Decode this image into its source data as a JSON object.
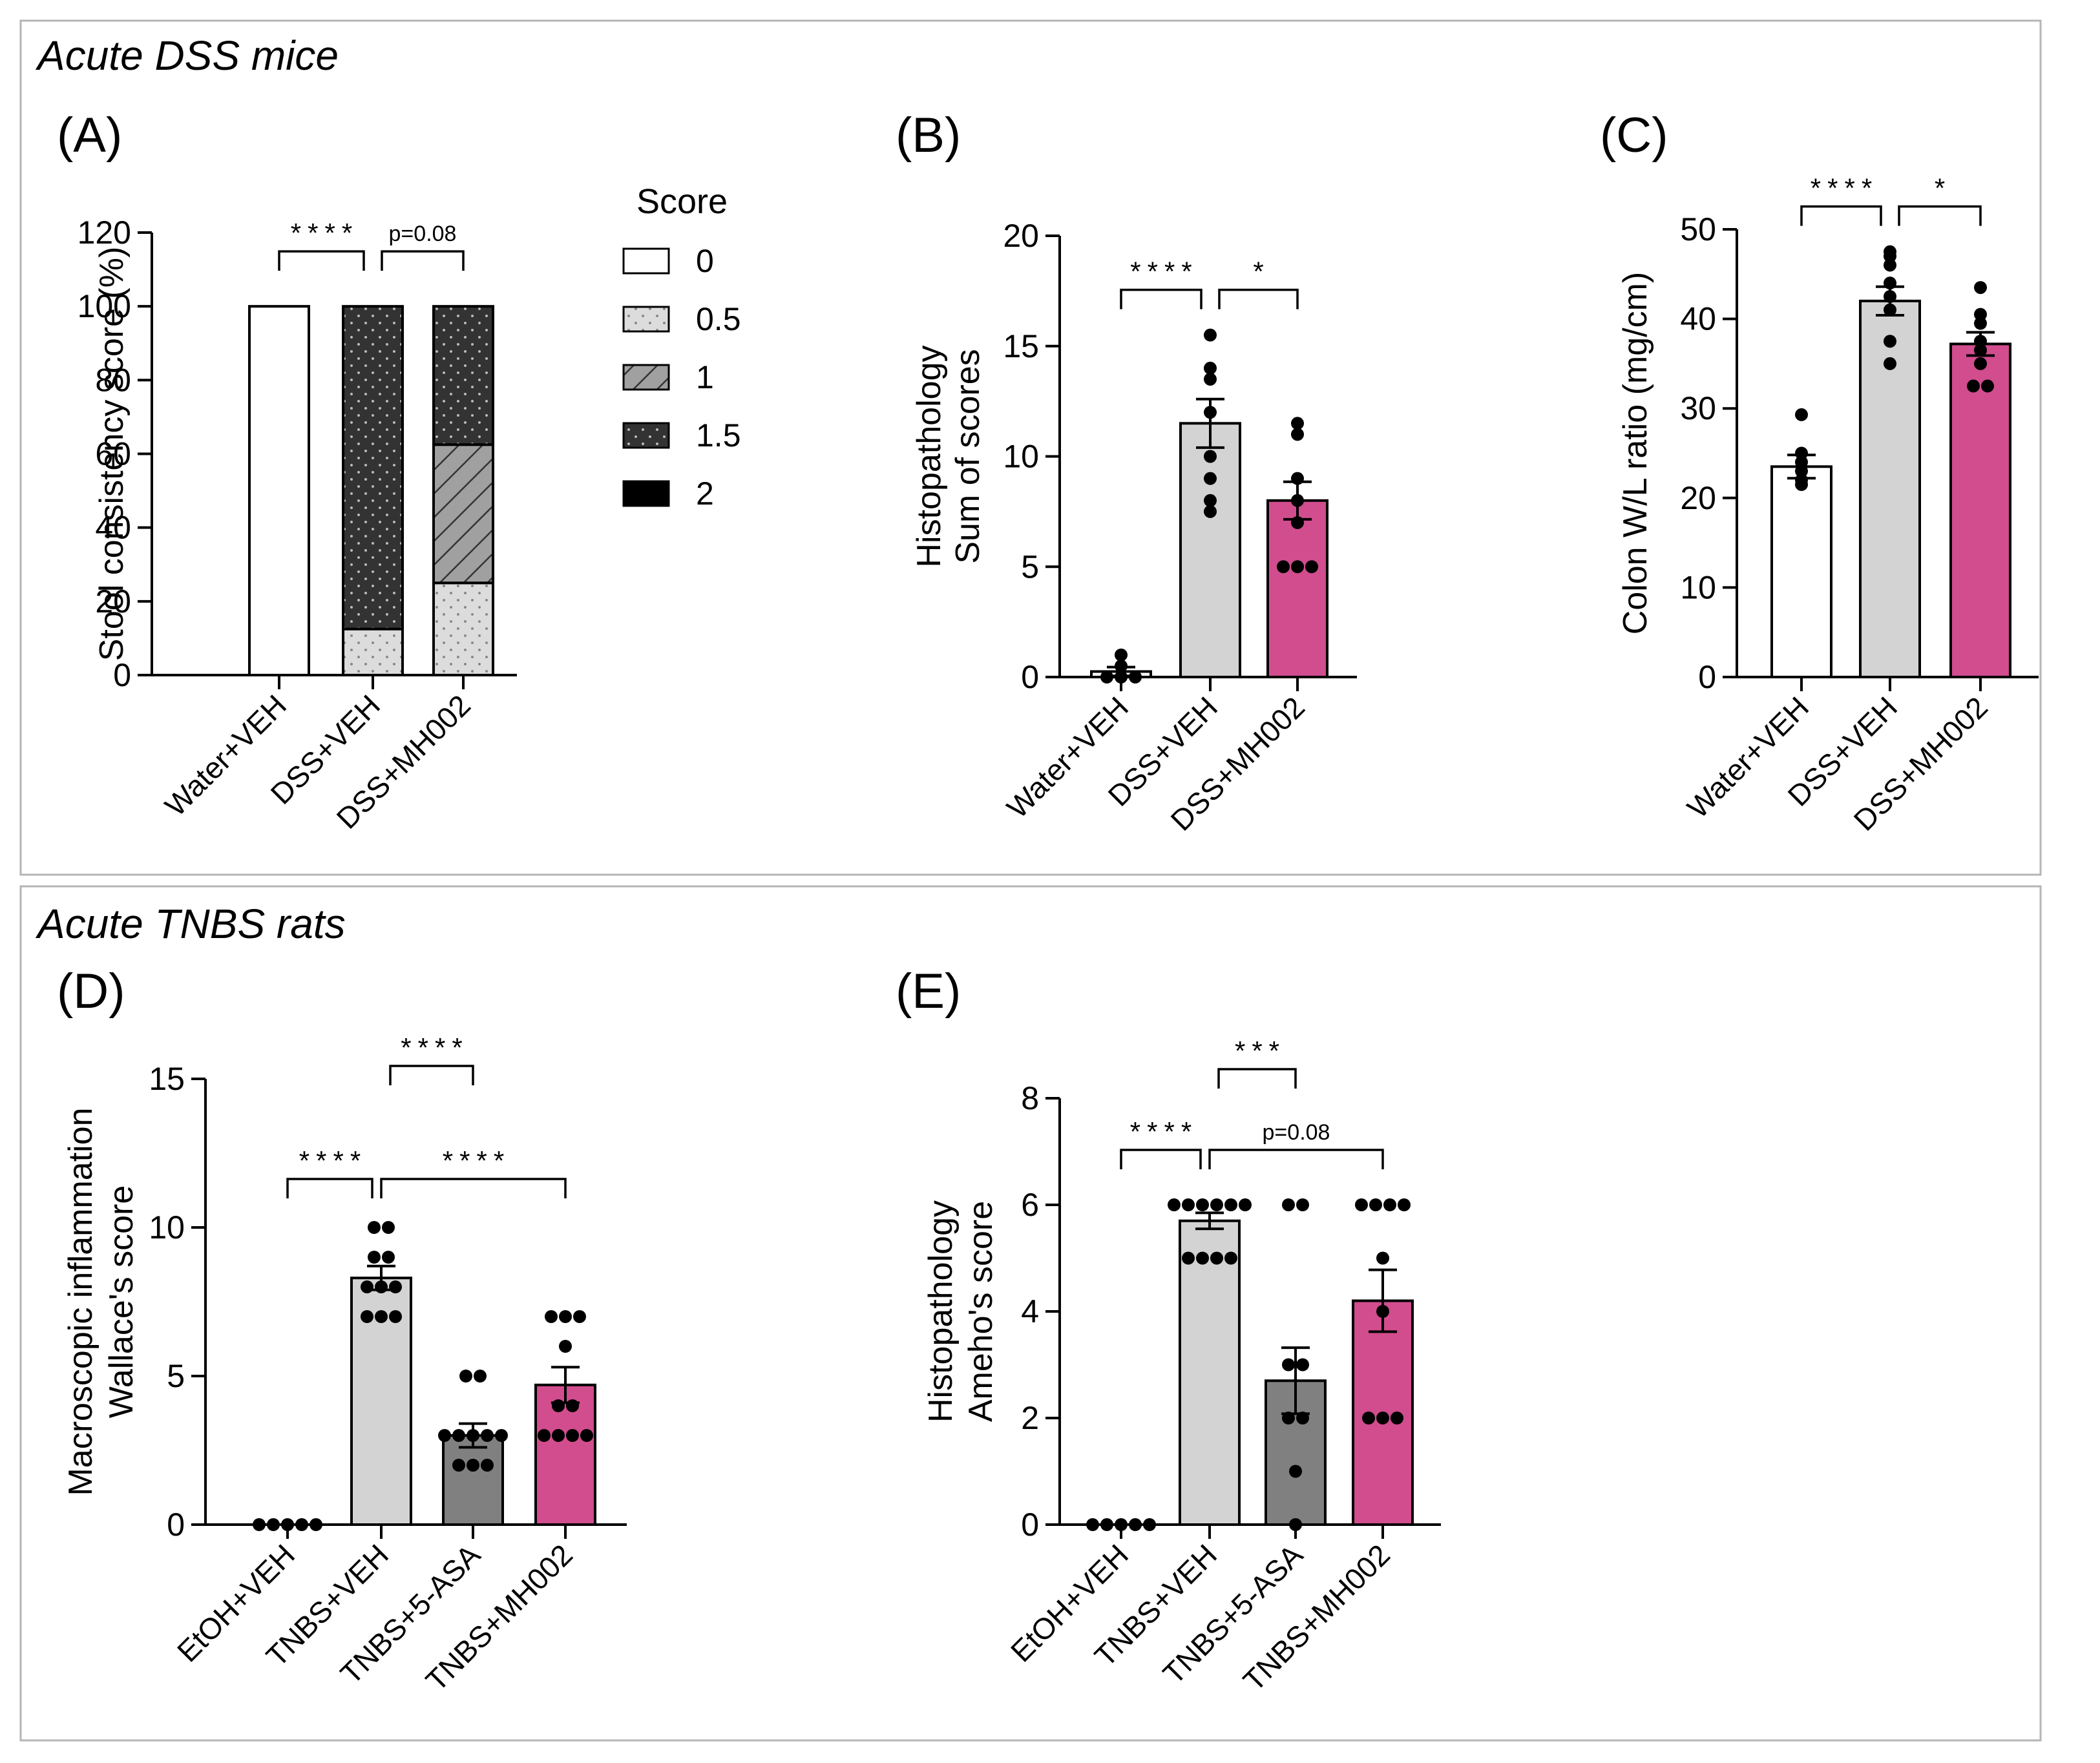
{
  "sections": {
    "top": "Acute DSS mice",
    "bottom": "Acute TNBS rats"
  },
  "colors": {
    "white": "#ffffff",
    "light_gray": "#d3d3d3",
    "dark_gray": "#808080",
    "magenta": "#d14d8e",
    "stack_dark": "#333333",
    "stack_hatch": "#a0a0a0",
    "stack_light": "#dcdcdc"
  },
  "chart_data": [
    {
      "panel": "(A)",
      "type": "bar",
      "stacked": true,
      "ylabel": "Stool consistency score (%)",
      "ylim": [
        0,
        120
      ],
      "yticks": [
        0,
        20,
        40,
        60,
        80,
        100,
        120
      ],
      "categories": [
        "Water+VEH",
        "DSS+VEH",
        "DSS+MH002"
      ],
      "legend_title": "Score",
      "series": [
        {
          "name": "0",
          "values": [
            100,
            0,
            0
          ]
        },
        {
          "name": "0.5",
          "values": [
            0,
            12.5,
            25
          ]
        },
        {
          "name": "1",
          "values": [
            0,
            0,
            37.5
          ]
        },
        {
          "name": "1.5",
          "values": [
            0,
            87.5,
            37.5
          ]
        },
        {
          "name": "2",
          "values": [
            0,
            0,
            0
          ]
        }
      ],
      "comparisons": [
        {
          "from": 0,
          "to": 1,
          "label": "****"
        },
        {
          "from": 1,
          "to": 2,
          "label": "p=0.08"
        }
      ]
    },
    {
      "panel": "(B)",
      "type": "bar",
      "ylabel": [
        "Histopathology",
        "Sum of scores"
      ],
      "ylim": [
        0,
        20
      ],
      "yticks": [
        0,
        5,
        10,
        15,
        20
      ],
      "categories": [
        "Water+VEH",
        "DSS+VEH",
        "DSS+MH002"
      ],
      "values": [
        0.25,
        11.5,
        8.0
      ],
      "sem": [
        0.2,
        1.1,
        0.85
      ],
      "points": [
        [
          0,
          0,
          0,
          0.5,
          1
        ],
        [
          7.5,
          8,
          9,
          10,
          12,
          13.5,
          14,
          15.5
        ],
        [
          5,
          5,
          5,
          7,
          8,
          9,
          11,
          11.5
        ]
      ],
      "comparisons": [
        {
          "from": 0,
          "to": 1,
          "label": "****"
        },
        {
          "from": 1,
          "to": 2,
          "label": "*"
        }
      ]
    },
    {
      "panel": "(C)",
      "type": "bar",
      "ylabel": "Colon W/L ratio (mg/cm)",
      "ylim": [
        0,
        50
      ],
      "yticks": [
        0,
        10,
        20,
        30,
        40,
        50
      ],
      "categories": [
        "Water+VEH",
        "DSS+VEH",
        "DSS+MH002"
      ],
      "values": [
        23.5,
        42.0,
        37.2
      ],
      "sem": [
        1.3,
        1.6,
        1.3
      ],
      "points": [
        [
          21.5,
          22,
          23,
          24,
          25,
          29.3
        ],
        [
          35,
          37.5,
          41,
          42.5,
          44,
          46,
          47,
          47.5
        ],
        [
          32.5,
          32.5,
          35,
          36.5,
          37.5,
          39.5,
          40.5,
          43.5
        ]
      ],
      "comparisons": [
        {
          "from": 0,
          "to": 1,
          "label": "****"
        },
        {
          "from": 1,
          "to": 2,
          "label": "*"
        }
      ]
    },
    {
      "panel": "(D)",
      "type": "bar",
      "ylabel": [
        "Macroscopic inflammation",
        "Wallace's score"
      ],
      "ylim": [
        0,
        15
      ],
      "yticks": [
        0,
        5,
        10,
        15
      ],
      "categories": [
        "EtOH+VEH",
        "TNBS+VEH",
        "TNBS+5-ASA",
        "TNBS+MH002"
      ],
      "values": [
        0.0,
        8.3,
        3.0,
        4.7
      ],
      "sem": [
        0.0,
        0.4,
        0.4,
        0.6
      ],
      "points": [
        [
          0,
          0,
          0,
          0,
          0
        ],
        [
          7,
          7,
          7,
          8,
          8,
          8,
          9,
          9,
          10,
          10
        ],
        [
          2,
          2,
          2,
          3,
          3,
          3,
          3,
          3,
          5,
          5
        ],
        [
          3,
          3,
          3,
          3,
          4,
          4,
          6,
          7,
          7,
          7
        ]
      ],
      "comparisons": [
        {
          "from": 0,
          "to": 1,
          "label": "****"
        },
        {
          "from": 1,
          "to": 2,
          "label": "****"
        },
        {
          "from": 1,
          "to": 3,
          "label": "****"
        }
      ]
    },
    {
      "panel": "(E)",
      "type": "bar",
      "ylabel": [
        "Histopathology",
        "Ameho's score"
      ],
      "ylim": [
        0,
        8
      ],
      "yticks": [
        0,
        2,
        4,
        6,
        8
      ],
      "categories": [
        "EtOH+VEH",
        "TNBS+VEH",
        "TNBS+5-ASA",
        "TNBS+MH002"
      ],
      "values": [
        0.0,
        5.7,
        2.7,
        4.2
      ],
      "sem": [
        0.0,
        0.15,
        0.62,
        0.58
      ],
      "points": [
        [
          0,
          0,
          0,
          0,
          0
        ],
        [
          5,
          5,
          5,
          5,
          6,
          6,
          6,
          6,
          6,
          6
        ],
        [
          0,
          1,
          2,
          2,
          3,
          3,
          6,
          6
        ],
        [
          2,
          2,
          2,
          4,
          5,
          6,
          6,
          6,
          6
        ]
      ],
      "comparisons": [
        {
          "from": 0,
          "to": 1,
          "label": "****"
        },
        {
          "from": 1,
          "to": 2,
          "label": "***"
        },
        {
          "from": 1,
          "to": 3,
          "label": "p=0.08"
        }
      ]
    }
  ]
}
